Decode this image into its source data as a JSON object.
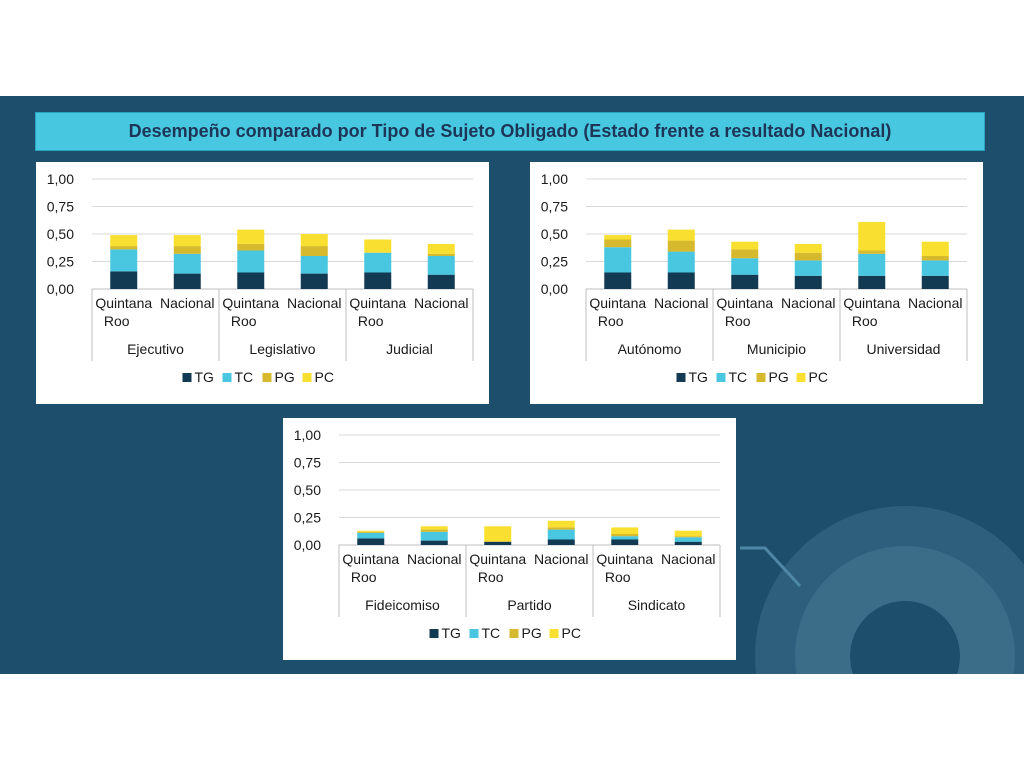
{
  "title": "Desempeño comparado por Tipo de Sujeto Obligado (Estado frente a resultado Nacional)",
  "colors": {
    "TG": "#123a52",
    "TC": "#49c6e0",
    "PG": "#d6b92c",
    "PC": "#f9df2f",
    "band": "#1d4e6b",
    "title_bg": "#48c8e0",
    "title_text": "#1d3557"
  },
  "chart_data": [
    {
      "type": "bar",
      "stacked": true,
      "groups": [
        "Ejecutivo",
        "Legislativo",
        "Judicial"
      ],
      "categories": [
        "Quintana Roo",
        "Nacional",
        "Quintana Roo",
        "Nacional",
        "Quintana Roo",
        "Nacional"
      ],
      "series": [
        {
          "name": "TG",
          "values": [
            0.16,
            0.14,
            0.15,
            0.14,
            0.15,
            0.13
          ]
        },
        {
          "name": "TC",
          "values": [
            0.2,
            0.18,
            0.2,
            0.16,
            0.18,
            0.17
          ]
        },
        {
          "name": "PG",
          "values": [
            0.03,
            0.07,
            0.06,
            0.09,
            0.0,
            0.02
          ]
        },
        {
          "name": "PC",
          "values": [
            0.1,
            0.1,
            0.13,
            0.11,
            0.12,
            0.09
          ]
        }
      ],
      "yticks": [
        "1,00",
        "0,75",
        "0,50",
        "0,25",
        "0,00"
      ],
      "ylim": [
        0,
        1
      ],
      "grid": true,
      "legend": "bottom"
    },
    {
      "type": "bar",
      "stacked": true,
      "groups": [
        "Autónomo",
        "Municipio",
        "Universidad"
      ],
      "categories": [
        "Quintana Roo",
        "Nacional",
        "Quintana Roo",
        "Nacional",
        "Quintana Roo",
        "Nacional"
      ],
      "series": [
        {
          "name": "TG",
          "values": [
            0.15,
            0.15,
            0.13,
            0.12,
            0.12,
            0.12
          ]
        },
        {
          "name": "TC",
          "values": [
            0.23,
            0.19,
            0.15,
            0.14,
            0.2,
            0.14
          ]
        },
        {
          "name": "PG",
          "values": [
            0.07,
            0.1,
            0.08,
            0.07,
            0.03,
            0.04
          ]
        },
        {
          "name": "PC",
          "values": [
            0.04,
            0.1,
            0.07,
            0.08,
            0.26,
            0.13
          ]
        }
      ],
      "yticks": [
        "1,00",
        "0,75",
        "0,50",
        "0,25",
        "0,00"
      ],
      "ylim": [
        0,
        1
      ],
      "grid": true,
      "legend": "bottom"
    },
    {
      "type": "bar",
      "stacked": true,
      "groups": [
        "Fideicomiso",
        "Partido",
        "Sindicato"
      ],
      "categories": [
        "Quintana Roo",
        "Nacional",
        "Quintana Roo",
        "Nacional",
        "Quintana Roo",
        "Nacional"
      ],
      "series": [
        {
          "name": "TG",
          "values": [
            0.06,
            0.04,
            0.03,
            0.05,
            0.05,
            0.03
          ]
        },
        {
          "name": "TC",
          "values": [
            0.05,
            0.08,
            0.0,
            0.09,
            0.03,
            0.04
          ]
        },
        {
          "name": "PG",
          "values": [
            0.01,
            0.02,
            0.0,
            0.02,
            0.02,
            0.01
          ]
        },
        {
          "name": "PC",
          "values": [
            0.01,
            0.03,
            0.14,
            0.06,
            0.06,
            0.05
          ]
        }
      ],
      "yticks": [
        "1,00",
        "0,75",
        "0,50",
        "0,25",
        "0,00"
      ],
      "ylim": [
        0,
        1
      ],
      "grid": true,
      "legend": "bottom"
    }
  ]
}
